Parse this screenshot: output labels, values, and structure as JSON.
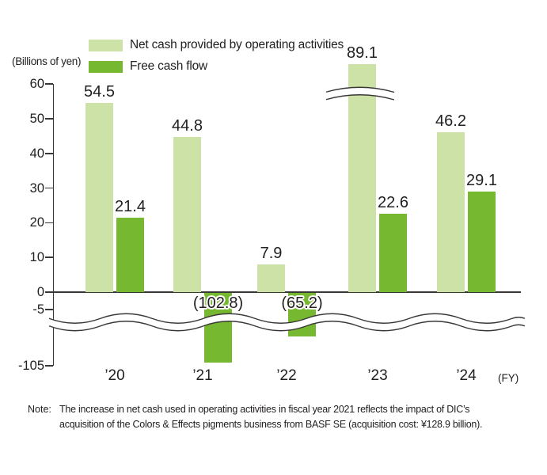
{
  "chart_data": {
    "type": "bar",
    "title": "",
    "ylabel": "(Billions of yen)",
    "categories": [
      "’20",
      "’21",
      "’22",
      "’23",
      "’24"
    ],
    "x_axis_suffix": "(FY)",
    "yticks": [
      "60",
      "50",
      "40",
      "30",
      "20",
      "10",
      "0",
      "-5",
      "-105"
    ],
    "ylim_display": [
      -105,
      60
    ],
    "grid": false,
    "legend_position": "top",
    "axis_break": "y-axis break between -5 and -105; bar break on the ’23 operating-activities bar above 60",
    "series": [
      {
        "name": "Net cash provided by operating activities",
        "color": "#cde2a6",
        "values": [
          54.5,
          44.8,
          7.9,
          89.1,
          46.2
        ],
        "value_labels": [
          "54.5",
          "44.8",
          "7.9",
          "89.1",
          "46.2"
        ]
      },
      {
        "name": "Free cash flow",
        "color": "#76b82f",
        "values": [
          21.4,
          -102.8,
          -65.2,
          22.6,
          29.1
        ],
        "value_labels": [
          "21.4",
          "(102.8)",
          "(65.2)",
          "22.6",
          "29.1"
        ]
      }
    ]
  },
  "note": {
    "label": "Note:",
    "lines": [
      "The increase in net cash used in operating activities in fiscal year 2021 reflects the impact of DIC’s",
      "acquisition of the Colors & Effects pigments business from BASF SE (acquisition cost: ¥128.9 billion)."
    ]
  }
}
